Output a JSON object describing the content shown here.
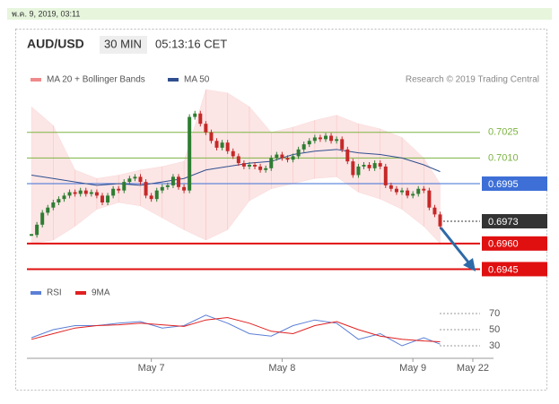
{
  "chart_data": {
    "type": "candlestick",
    "header_date": "พ.ค. 9, 2019, 03:11",
    "title": "AUD/USD",
    "timeframe": "30 MIN",
    "time": "05:13:16 CET",
    "credit": "Research © 2019 Trading Central",
    "up_color": "#2e7d32",
    "down_color": "#c62828",
    "xlim": [
      -22.5,
      59.5
    ],
    "ylim": [
      0.694,
      0.705
    ],
    "xticks": [
      {
        "value": 0,
        "label": "May 7"
      },
      {
        "value": 24,
        "label": "May 8"
      },
      {
        "value": 48,
        "label": "May 9"
      },
      {
        "value": 59,
        "label": "May 22"
      }
    ],
    "x": [
      -22,
      -21,
      -20,
      -19,
      -18,
      -17,
      -16,
      -15,
      -14,
      -13,
      -12,
      -11,
      -10,
      -9,
      -8,
      -7,
      -6,
      -5,
      -4,
      -3,
      -2,
      -1,
      0,
      1,
      2,
      3,
      4,
      5,
      6,
      7,
      8,
      9,
      10,
      11,
      12,
      13,
      14,
      15,
      16,
      17,
      18,
      19,
      20,
      21,
      22,
      23,
      24,
      25,
      26,
      27,
      28,
      29,
      30,
      31,
      32,
      33,
      34,
      35,
      36,
      37,
      38,
      39,
      40,
      41,
      42,
      43,
      44,
      45,
      46,
      47,
      48,
      49,
      50,
      51,
      52,
      53
    ],
    "close": [
      0.6965,
      0.6971,
      0.6978,
      0.6981,
      0.6984,
      0.6986,
      0.6988,
      0.699,
      0.6989,
      0.6991,
      0.6989,
      0.699,
      0.6988,
      0.6984,
      0.6988,
      0.6992,
      0.6991,
      0.6996,
      0.6998,
      0.6999,
      0.6996,
      0.6988,
      0.6986,
      0.6991,
      0.6993,
      0.6994,
      0.6999,
      0.6993,
      0.6991,
      0.7034,
      0.7036,
      0.703,
      0.7025,
      0.702,
      0.7016,
      0.7019,
      0.7014,
      0.7011,
      0.7007,
      0.7005,
      0.7006,
      0.7005,
      0.7003,
      0.7004,
      0.701,
      0.7012,
      0.701,
      0.7009,
      0.7011,
      0.7015,
      0.7018,
      0.702,
      0.7022,
      0.7021,
      0.7023,
      0.702,
      0.7021,
      0.7015,
      0.7008,
      0.7,
      0.7005,
      0.7006,
      0.7004,
      0.7007,
      0.7005,
      0.6994,
      0.6992,
      0.699,
      0.6991,
      0.6988,
      0.6989,
      0.6992,
      0.6991,
      0.6981,
      0.6977,
      0.697
    ],
    "indicators": {
      "x": [
        -22,
        -18,
        -14,
        -10,
        -6,
        -2,
        2,
        6,
        10,
        14,
        18,
        22,
        26,
        30,
        34,
        38,
        42,
        46,
        50,
        53
      ],
      "band": {
        "name": "MA 20 + Bollinger Bands",
        "color": "#f08a8a",
        "upper": [
          0.704,
          0.7029,
          0.7003,
          0.6998,
          0.7,
          0.7003,
          0.7005,
          0.7008,
          0.705,
          0.7048,
          0.704,
          0.7025,
          0.7028,
          0.7032,
          0.7035,
          0.703,
          0.7027,
          0.7022,
          0.701,
          0.6995
        ],
        "lower": [
          0.696,
          0.6962,
          0.697,
          0.698,
          0.6984,
          0.6982,
          0.6975,
          0.6968,
          0.6962,
          0.6968,
          0.6985,
          0.6992,
          0.6995,
          0.6998,
          0.6999,
          0.699,
          0.6986,
          0.698,
          0.697,
          0.696
        ]
      },
      "ma": {
        "name": "MA 50",
        "color": "#2f4f8f",
        "values": [
          0.7,
          0.6998,
          0.6996,
          0.6994,
          0.6995,
          0.6994,
          0.6996,
          0.6998,
          0.7003,
          0.7005,
          0.7007,
          0.7008,
          0.7012,
          0.7014,
          0.7015,
          0.7013,
          0.7012,
          0.701,
          0.7006,
          0.7002
        ]
      }
    },
    "levels": [
      {
        "value": 0.7025,
        "color": "#7cb342",
        "line": "solid",
        "box": false
      },
      {
        "value": 0.701,
        "label": "0.7010",
        "color": "#7cb342",
        "line": "solid",
        "box": false
      },
      {
        "value": 0.6995,
        "color": "#3d6fd6",
        "line": "solid",
        "box": true
      },
      {
        "value": 0.6973,
        "color": "#333333",
        "line": "dotted",
        "box": true
      },
      {
        "value": 0.696,
        "label": "0.6960",
        "color": "#e01010",
        "line": "solid",
        "box": true
      },
      {
        "value": 0.6945,
        "color": "#e01010",
        "line": "solid",
        "box": true
      }
    ],
    "rsi": {
      "ylim": [
        20,
        80
      ],
      "yticks": [
        30,
        50,
        70
      ],
      "series": [
        {
          "name": "RSI",
          "color": "#5b7fd6",
          "values": [
            40,
            50,
            55,
            55,
            58,
            60,
            52,
            55,
            68,
            58,
            45,
            42,
            55,
            62,
            58,
            38,
            45,
            30,
            40,
            32
          ]
        },
        {
          "name": "9MA",
          "color": "#e02020",
          "values": [
            38,
            45,
            52,
            55,
            56,
            58,
            56,
            54,
            62,
            65,
            58,
            48,
            45,
            55,
            60,
            50,
            42,
            38,
            36,
            35
          ]
        }
      ]
    }
  }
}
